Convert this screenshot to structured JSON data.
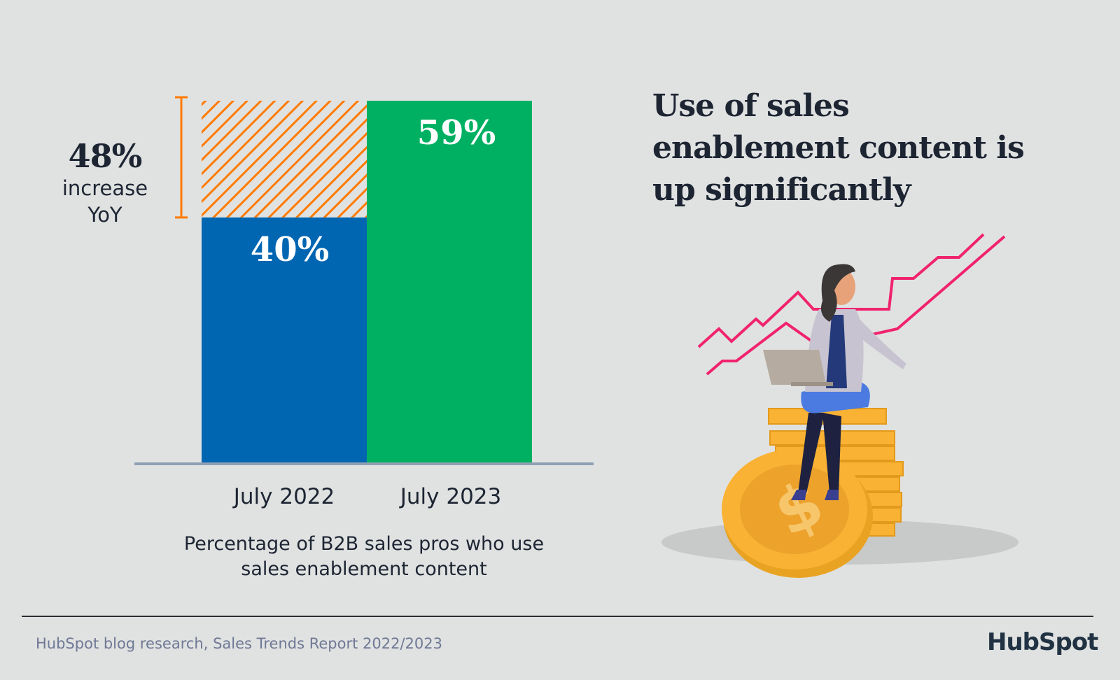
{
  "chart_data": {
    "type": "bar",
    "categories": [
      "July 2022",
      "July 2023"
    ],
    "values": [
      40,
      59
    ],
    "data_labels": [
      "40%",
      "59%"
    ],
    "colors": [
      "#0066b2",
      "#00b062"
    ],
    "increase_color": "#ff7a00",
    "ylim": [
      0,
      59
    ],
    "caption": "Percentage of B2B sales pros who use sales enablement content",
    "annotation": {
      "value": "48%",
      "line1": "increase",
      "line2": "YoY"
    },
    "grid": false
  },
  "title": "Use of sales enablement content is up significantly",
  "footer": {
    "source": "HubSpot blog research, Sales Trends Report 2022/2023",
    "logo": "HubSpot"
  },
  "illustration": "woman-with-laptop-on-coins-icon"
}
